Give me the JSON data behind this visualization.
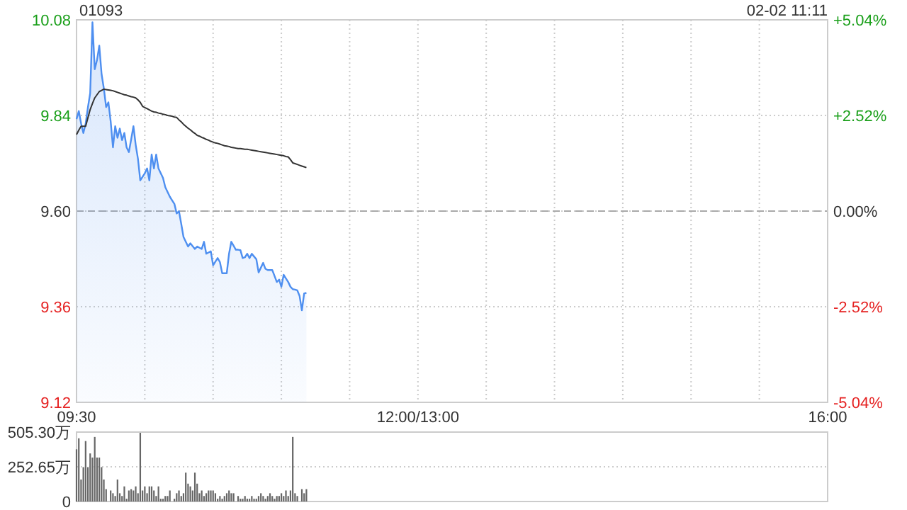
{
  "chart_data": [
    {
      "type": "line",
      "title": "01093",
      "annotations": [
        "02-02 11:11"
      ],
      "categories": [
        "09:30",
        null,
        null,
        null,
        null,
        null,
        null,
        null,
        null,
        null,
        null,
        null,
        null,
        null,
        null,
        null,
        null,
        null,
        null,
        null,
        null,
        null,
        null,
        null,
        null,
        null,
        null,
        null,
        null,
        null,
        null,
        null,
        null,
        null,
        null,
        null,
        null,
        null,
        null,
        null,
        null,
        null,
        null,
        null,
        null,
        null,
        null,
        null,
        null,
        null,
        null,
        null,
        null,
        null,
        null,
        null,
        null,
        null,
        null,
        null,
        null,
        null,
        null,
        null,
        null,
        null,
        null,
        null,
        null,
        null,
        null,
        null,
        null,
        null,
        null,
        null,
        null,
        null,
        null,
        null,
        null,
        null,
        null,
        null,
        null,
        null,
        null,
        null,
        null,
        null,
        null,
        null,
        null,
        null,
        null,
        null,
        null,
        null,
        null,
        null,
        null,
        null,
        null,
        null,
        null,
        null,
        null,
        null,
        null,
        null,
        null,
        null,
        null,
        null,
        null,
        null,
        null,
        null,
        null,
        null,
        null,
        null,
        null,
        null,
        null,
        null,
        null,
        null,
        null,
        null,
        null,
        null,
        null,
        null,
        null,
        null,
        null,
        null,
        null,
        null,
        null,
        null,
        null,
        null,
        null,
        null,
        null,
        null,
        null,
        null,
        "12:00/13:00",
        null,
        null,
        null,
        null,
        null,
        null,
        null,
        null,
        null,
        null,
        null,
        null,
        null,
        null,
        null,
        null,
        null,
        null,
        null,
        null,
        null,
        null,
        null,
        null,
        null,
        null,
        null,
        null,
        null,
        null,
        null,
        null,
        null,
        null,
        null,
        null,
        null,
        null,
        null,
        null,
        null,
        null,
        null,
        null,
        null,
        null,
        null,
        null,
        null,
        null,
        null,
        null,
        null,
        null,
        null,
        null,
        null,
        null,
        null,
        null,
        null,
        null,
        null,
        null,
        null,
        null,
        null,
        null,
        null,
        null,
        null,
        null,
        null,
        null,
        null,
        null,
        null,
        null,
        null,
        null,
        null,
        null,
        null,
        null,
        null,
        null,
        null,
        null,
        null,
        null,
        null,
        null,
        null,
        null,
        null,
        null,
        null,
        null,
        null,
        null,
        null,
        null,
        null,
        null,
        null,
        null,
        null,
        null,
        null,
        null,
        null,
        null,
        null,
        null,
        null,
        null,
        null,
        null,
        null,
        null,
        null,
        null,
        null,
        null,
        null,
        null,
        null,
        null,
        null,
        null,
        null,
        null,
        null,
        null,
        null,
        null,
        null,
        null,
        null,
        null,
        null,
        null,
        null,
        null,
        null,
        null,
        null,
        null,
        null,
        null,
        null,
        null,
        null,
        null,
        null,
        null,
        null,
        null,
        null,
        null,
        null,
        null,
        null,
        null,
        null,
        null,
        null,
        null,
        null,
        null,
        null,
        null,
        null,
        null,
        null,
        null,
        null,
        null,
        null,
        "16:00"
      ],
      "ylim": [
        9.12,
        10.08
      ],
      "yticks": [
        {
          "value": 9.12,
          "label": "9.12"
        },
        {
          "value": 9.36,
          "label": "9.36"
        },
        {
          "value": 9.6,
          "label": "9.60"
        },
        {
          "value": 9.84,
          "label": "9.84"
        },
        {
          "value": 10.08,
          "label": "10.08"
        }
      ],
      "y2lim": [
        -5.04,
        5.04
      ],
      "y2ticks": [
        {
          "value": -5.04,
          "label": "-5.04%"
        },
        {
          "value": -2.52,
          "label": "-2.52%"
        },
        {
          "value": 0,
          "label": "0.00%"
        },
        {
          "value": 2.52,
          "label": "+2.52%"
        },
        {
          "value": 5.04,
          "label": "+5.04%"
        }
      ],
      "grid": true,
      "ref_lines": [
        {
          "axis": "y",
          "value": 9.6,
          "line_style": "dashed",
          "color": "#aaaaaa"
        }
      ],
      "series": [
        {
          "type": "area",
          "color": "#4e8ff0",
          "values": [
            9.831,
            9.851,
            9.82,
            9.796,
            9.819,
            9.86,
            9.896,
            10.074,
            9.956,
            9.979,
            10.015,
            9.944,
            9.908,
            9.861,
            9.873,
            9.825,
            9.76,
            9.813,
            9.784,
            9.807,
            9.778,
            9.796,
            9.76,
            9.748,
            9.78,
            9.813,
            9.766,
            9.731,
            9.677,
            9.686,
            9.695,
            9.707,
            9.677,
            9.742,
            9.707,
            9.742,
            9.707,
            9.695,
            9.683,
            9.66,
            9.648,
            9.636,
            9.627,
            9.618,
            9.594,
            9.6,
            9.568,
            9.535,
            9.523,
            9.511,
            9.519,
            9.512,
            9.505,
            9.511,
            9.508,
            9.505,
            9.523,
            9.493,
            9.496,
            9.499,
            9.464,
            9.473,
            9.482,
            9.472,
            9.444,
            9.444,
            9.444,
            9.493,
            9.523,
            9.513,
            9.503,
            9.503,
            9.502,
            9.482,
            9.484,
            9.493,
            9.482,
            9.493,
            9.486,
            9.479,
            9.446,
            9.458,
            9.47,
            9.455,
            9.452,
            9.452,
            9.452,
            9.437,
            9.422,
            9.428,
            9.41,
            9.44,
            9.431,
            9.422,
            9.41,
            9.404,
            9.403,
            9.401,
            9.387,
            9.351,
            9.393,
            9.395,
            null,
            null,
            null,
            null,
            null,
            null,
            null,
            null,
            null,
            null,
            null,
            null,
            null,
            null,
            null,
            null,
            null,
            null,
            null,
            null,
            null,
            null,
            null,
            null,
            null,
            null,
            null,
            null,
            null,
            null,
            null,
            null,
            null,
            null,
            null,
            null,
            null,
            null,
            null,
            null,
            null,
            null,
            null,
            null,
            null,
            null,
            null,
            null,
            null,
            null,
            null,
            null,
            null,
            null,
            null,
            null,
            null,
            null,
            null,
            null,
            null,
            null,
            null,
            null,
            null,
            null,
            null,
            null,
            null,
            null,
            null,
            null,
            null,
            null,
            null,
            null,
            null,
            null,
            null,
            null,
            null,
            null,
            null,
            null,
            null,
            null,
            null,
            null,
            null,
            null,
            null,
            null,
            null,
            null,
            null,
            null,
            null,
            null,
            null,
            null,
            null,
            null,
            null,
            null,
            null,
            null,
            null,
            null,
            null,
            null,
            null,
            null,
            null,
            null,
            null,
            null,
            null,
            null,
            null,
            null,
            null,
            null,
            null,
            null,
            null,
            null,
            null,
            null,
            null,
            null,
            null,
            null,
            null,
            null,
            null,
            null,
            null,
            null,
            null,
            null,
            null,
            null,
            null,
            null,
            null,
            null,
            null,
            null,
            null,
            null,
            null,
            null,
            null,
            null,
            null,
            null,
            null,
            null,
            null,
            null,
            null,
            null,
            null,
            null,
            null,
            null,
            null,
            null,
            null,
            null,
            null,
            null,
            null,
            null,
            null,
            null,
            null,
            null,
            null,
            null,
            null,
            null,
            null,
            null,
            null,
            null,
            null,
            null,
            null,
            null,
            null,
            null,
            null,
            null,
            null,
            null,
            null,
            null,
            null,
            null,
            null,
            null,
            null,
            null,
            null,
            null,
            null,
            null,
            null,
            null,
            null,
            null,
            null,
            null,
            null,
            null,
            null,
            null,
            null,
            null,
            null,
            null,
            null,
            null,
            null,
            null,
            null,
            null,
            null
          ]
        },
        {
          "color": "#333333",
          "values": [
            9.792,
            9.803,
            9.813,
            9.813,
            9.813,
            9.834,
            9.855,
            9.87,
            9.884,
            9.892,
            9.9,
            9.903,
            9.906,
            9.905,
            9.904,
            9.903,
            9.902,
            9.9,
            9.898,
            9.896,
            9.894,
            9.892,
            9.891,
            9.889,
            9.887,
            9.886,
            9.884,
            9.879,
            9.873,
            9.863,
            9.86,
            9.857,
            9.854,
            9.851,
            9.849,
            9.848,
            9.846,
            9.845,
            9.843,
            9.842,
            9.84,
            9.839,
            9.838,
            9.836,
            9.835,
            9.829,
            9.824,
            9.818,
            9.813,
            9.808,
            9.804,
            9.799,
            9.795,
            9.79,
            9.788,
            9.785,
            9.783,
            9.78,
            9.778,
            9.775,
            9.773,
            9.771,
            9.77,
            9.768,
            9.766,
            9.764,
            9.763,
            9.762,
            9.76,
            9.759,
            9.758,
            9.757,
            9.757,
            9.756,
            9.755,
            9.755,
            9.754,
            9.753,
            9.752,
            9.751,
            9.75,
            9.749,
            9.748,
            9.747,
            9.746,
            9.745,
            9.744,
            9.743,
            9.742,
            9.741,
            9.74,
            9.739,
            9.737,
            9.736,
            9.729,
            9.721,
            9.719,
            9.717,
            9.715,
            9.713,
            9.711,
            9.709,
            null,
            null,
            null,
            null,
            null,
            null,
            null,
            null,
            null,
            null,
            null,
            null,
            null,
            null,
            null,
            null,
            null,
            null,
            null,
            null,
            null,
            null,
            null,
            null,
            null,
            null,
            null,
            null,
            null,
            null,
            null,
            null,
            null,
            null,
            null,
            null,
            null,
            null,
            null,
            null,
            null,
            null,
            null,
            null,
            null,
            null,
            null,
            null,
            null,
            null,
            null,
            null,
            null,
            null,
            null,
            null,
            null,
            null,
            null,
            null,
            null,
            null,
            null,
            null,
            null,
            null,
            null,
            null,
            null,
            null,
            null,
            null,
            null,
            null,
            null,
            null,
            null,
            null,
            null,
            null,
            null,
            null,
            null,
            null,
            null,
            null,
            null,
            null,
            null,
            null,
            null,
            null,
            null,
            null,
            null,
            null,
            null,
            null,
            null,
            null,
            null,
            null,
            null,
            null,
            null,
            null,
            null,
            null,
            null,
            null,
            null,
            null,
            null,
            null,
            null,
            null,
            null,
            null,
            null,
            null,
            null,
            null,
            null,
            null,
            null,
            null,
            null,
            null,
            null,
            null,
            null,
            null,
            null,
            null,
            null,
            null,
            null,
            null,
            null,
            null,
            null,
            null,
            null,
            null,
            null,
            null,
            null,
            null,
            null,
            null,
            null,
            null,
            null,
            null,
            null,
            null,
            null,
            null,
            null,
            null,
            null,
            null,
            null,
            null,
            null,
            null,
            null,
            null,
            null,
            null,
            null,
            null,
            null,
            null,
            null,
            null,
            null,
            null,
            null,
            null,
            null,
            null,
            null,
            null,
            null,
            null,
            null,
            null,
            null,
            null,
            null,
            null,
            null,
            null,
            null,
            null,
            null,
            null,
            null,
            null,
            null,
            null,
            null,
            null,
            null,
            null,
            null,
            null,
            null,
            null,
            null,
            null,
            null,
            null,
            null,
            null,
            null,
            null,
            null,
            null,
            null,
            null,
            null,
            null,
            null,
            null,
            null,
            null,
            null
          ]
        }
      ]
    },
    {
      "type": "bar",
      "color": "#666666",
      "ylim": [
        0,
        505.3
      ],
      "tick_labels": "y",
      "grid": "y",
      "categories": [
        null,
        null,
        null,
        null,
        null,
        null,
        null,
        null,
        null,
        null,
        null,
        null,
        null,
        null,
        null,
        null,
        null,
        null,
        null,
        null,
        null,
        null,
        null,
        null,
        null,
        null,
        null,
        null,
        null,
        null,
        null,
        null,
        null,
        null,
        null,
        null,
        null,
        null,
        null,
        null,
        null,
        null,
        null,
        null,
        null,
        null,
        null,
        null,
        null,
        null,
        null,
        null,
        null,
        null,
        null,
        null,
        null,
        null,
        null,
        null,
        null,
        null,
        null,
        null,
        null,
        null,
        null,
        null,
        null,
        null,
        null,
        null,
        null,
        null,
        null,
        null,
        null,
        null,
        null,
        null,
        null,
        null,
        null,
        null,
        null,
        null,
        null,
        null,
        null,
        null,
        null,
        null,
        null,
        null,
        null,
        null,
        null,
        null,
        null,
        null,
        null,
        null,
        null,
        null,
        null,
        null,
        null,
        null,
        null,
        null,
        null,
        null,
        null,
        null,
        null,
        null,
        null,
        null,
        null,
        null,
        null,
        null,
        null,
        null,
        null,
        null,
        null,
        null,
        null,
        null,
        null,
        null,
        null,
        null,
        null,
        null,
        null,
        null,
        null,
        null,
        null,
        null,
        null,
        null,
        null,
        null,
        null,
        null,
        null,
        null,
        null,
        null,
        null,
        null,
        null,
        null,
        null,
        null,
        null,
        null,
        null,
        null,
        null,
        null,
        null,
        null,
        null,
        null,
        null,
        null,
        null,
        null,
        null,
        null,
        null,
        null,
        null,
        null,
        null,
        null,
        null,
        null,
        null,
        null,
        null,
        null,
        null,
        null,
        null,
        null,
        null,
        null,
        null,
        null,
        null,
        null,
        null,
        null,
        null,
        null,
        null,
        null,
        null,
        null,
        null,
        null,
        null,
        null,
        null,
        null,
        null,
        null,
        null,
        null,
        null,
        null,
        null,
        null,
        null,
        null,
        null,
        null,
        null,
        null,
        null,
        null,
        null,
        null,
        null,
        null,
        null,
        null,
        null,
        null,
        null,
        null,
        null,
        null,
        null,
        null,
        null,
        null,
        null,
        null,
        null,
        null,
        null,
        null,
        null,
        null,
        null,
        null,
        null,
        null,
        null,
        null,
        null,
        null,
        null,
        null,
        null,
        null,
        null,
        null,
        null,
        null,
        null,
        null,
        null,
        null,
        null,
        null,
        null,
        null,
        null,
        null,
        null,
        null,
        null,
        null,
        null,
        null,
        null,
        null,
        null,
        null,
        null,
        null,
        null,
        null,
        null,
        null,
        null,
        null,
        null,
        null,
        null,
        null,
        null,
        null,
        null,
        null,
        null,
        null,
        null,
        null,
        null,
        null,
        null,
        null,
        null,
        null,
        null,
        null,
        null,
        null,
        null,
        null,
        null,
        null,
        null,
        null,
        null,
        null,
        null,
        null,
        null,
        null,
        null,
        null,
        null
      ],
      "yticks": [
        {
          "value": 0,
          "label": "0"
        },
        {
          "value": 252.65,
          "label": "252.65万"
        },
        {
          "value": 505.3,
          "label": "505.30万"
        }
      ],
      "values": [
        380,
        460,
        160,
        250,
        440,
        250,
        350,
        320,
        470,
        320,
        320,
        250,
        160,
        90,
        null,
        80,
        60,
        40,
        160,
        60,
        40,
        110,
        20,
        80,
        90,
        80,
        110,
        60,
        500,
        80,
        110,
        60,
        110,
        110,
        80,
        40,
        110,
        20,
        20,
        40,
        40,
        80,
        null,
        20,
        60,
        80,
        40,
        60,
        210,
        130,
        110,
        80,
        210,
        130,
        60,
        80,
        40,
        60,
        80,
        80,
        80,
        60,
        20,
        40,
        20,
        40,
        60,
        80,
        60,
        60,
        null,
        40,
        20,
        20,
        40,
        20,
        20,
        40,
        20,
        20,
        40,
        60,
        40,
        20,
        40,
        60,
        40,
        20,
        40,
        40,
        60,
        40,
        80,
        40,
        80,
        470,
        60,
        40,
        null,
        90,
        60,
        90,
        null,
        null,
        null,
        null,
        null,
        null,
        null,
        null,
        null,
        null,
        null,
        null,
        null,
        null,
        null,
        null,
        null,
        null,
        null,
        null,
        null,
        null,
        null,
        null,
        null,
        null,
        null,
        null,
        null,
        null,
        null,
        null,
        null,
        null,
        null,
        null,
        null,
        null,
        null,
        null,
        null,
        null,
        null,
        null,
        null,
        null,
        null,
        null,
        null,
        null,
        null,
        null,
        null,
        null,
        null,
        null,
        null,
        null,
        null,
        null,
        null,
        null,
        null,
        null,
        null,
        null,
        null,
        null,
        null,
        null,
        null,
        null,
        null,
        null,
        null,
        null,
        null,
        null,
        null,
        null,
        null,
        null,
        null,
        null,
        null,
        null,
        null,
        null,
        null,
        null,
        null,
        null,
        null,
        null,
        null,
        null,
        null,
        null,
        null,
        null,
        null,
        null,
        null,
        null,
        null,
        null,
        null,
        null,
        null,
        null,
        null,
        null,
        null,
        null,
        null,
        null,
        null,
        null,
        null,
        null,
        null,
        null,
        null,
        null,
        null,
        null,
        null,
        null,
        null,
        null,
        null,
        null,
        null,
        null,
        null,
        null,
        null,
        null,
        null,
        null,
        null,
        null,
        null,
        null,
        null,
        null,
        null,
        null,
        null,
        null,
        null,
        null,
        null,
        null,
        null,
        null,
        null,
        null,
        null,
        null,
        null,
        null,
        null,
        null,
        null,
        null,
        null,
        null,
        null,
        null,
        null,
        null,
        null,
        null,
        null,
        null,
        null,
        null,
        null,
        null,
        null,
        null,
        null,
        null,
        null,
        null,
        null,
        null,
        null,
        null,
        null,
        null,
        null,
        null,
        null,
        null,
        null,
        null,
        null,
        null,
        null,
        null,
        null,
        null,
        null,
        null,
        null,
        null,
        null,
        null,
        null,
        null,
        null,
        null,
        null,
        null,
        null,
        null,
        null,
        null,
        null,
        null,
        null,
        null,
        null,
        null,
        null,
        null,
        null
      ]
    }
  ]
}
